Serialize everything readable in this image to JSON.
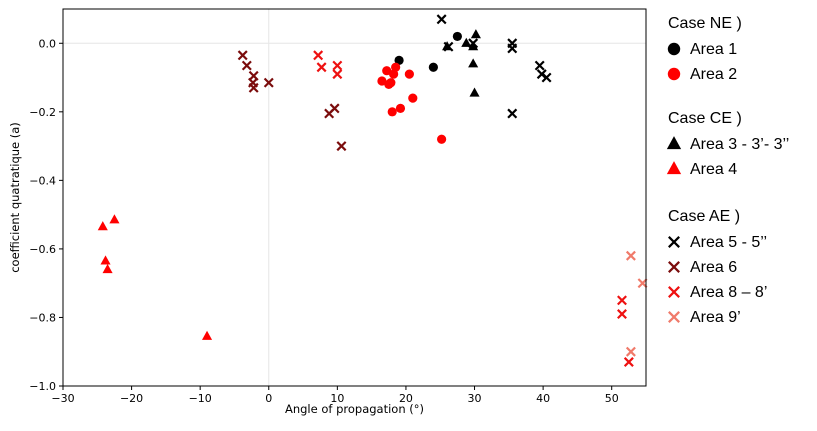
{
  "chart_data": {
    "type": "scatter",
    "xlabel": "Angle of propagation (°)",
    "ylabel": "coefficient quatratique (a)",
    "xlim": [
      -30,
      55
    ],
    "ylim": [
      -1.0,
      0.1
    ],
    "x_ticks": [
      -30,
      -20,
      -10,
      0,
      10,
      20,
      30,
      40,
      50
    ],
    "y_ticks": [
      -1.0,
      -0.8,
      -0.6,
      -0.4,
      -0.2,
      0.0
    ],
    "x_tick_labels": [
      "−30",
      "−20",
      "−10",
      "0",
      "10",
      "20",
      "30",
      "40",
      "50"
    ],
    "y_tick_labels": [
      "−1.0",
      "−0.8",
      "−0.6",
      "−0.4",
      "−0.2",
      "0.0"
    ],
    "grid": "zero lines only",
    "legend_position": "right, outside plot",
    "legend": [
      {
        "title": "Case NE )",
        "entries": [
          {
            "label": "Area 1",
            "marker": "circle",
            "color": "#000000"
          },
          {
            "label": "Area 2",
            "marker": "circle",
            "color": "#ff0000"
          }
        ]
      },
      {
        "title": "Case CE )",
        "entries": [
          {
            "label": "Area 3 - 3’- 3’’",
            "marker": "triangle",
            "color": "#000000"
          },
          {
            "label": "Area 4",
            "marker": "triangle",
            "color": "#ff0000"
          }
        ]
      },
      {
        "title": "Case AE )",
        "entries": [
          {
            "label": "Area 5 - 5’’",
            "marker": "x",
            "color": "#000000"
          },
          {
            "label": "Area 6",
            "marker": "x",
            "color": "#7b0c0c"
          },
          {
            "label": "Area 8 – 8’",
            "marker": "x",
            "color": "#ee1111"
          },
          {
            "label": "Area 9’",
            "marker": "x",
            "color": "#f07a6a"
          }
        ]
      }
    ],
    "series": [
      {
        "marker": "circle",
        "color": "#000000",
        "points": [
          [
            27.5,
            0.02
          ],
          [
            19,
            -0.05
          ],
          [
            24,
            -0.07
          ]
        ]
      },
      {
        "marker": "circle",
        "color": "#ff0000",
        "points": [
          [
            16.5,
            -0.11
          ],
          [
            17.2,
            -0.08
          ],
          [
            17.5,
            -0.12
          ],
          [
            17.8,
            -0.115
          ],
          [
            18.2,
            -0.09
          ],
          [
            18.5,
            -0.07
          ],
          [
            18.0,
            -0.2
          ],
          [
            19.2,
            -0.19
          ],
          [
            20.5,
            -0.09
          ],
          [
            21,
            -0.16
          ],
          [
            25.2,
            -0.28
          ]
        ]
      },
      {
        "marker": "triangle",
        "color": "#000000",
        "points": [
          [
            26,
            -0.01
          ],
          [
            28.8,
            0.0
          ],
          [
            30.2,
            0.025
          ],
          [
            29.8,
            -0.01
          ],
          [
            29.8,
            -0.06
          ],
          [
            30,
            -0.145
          ]
        ]
      },
      {
        "marker": "triangle",
        "color": "#ff0000",
        "points": [
          [
            -24.2,
            -0.535
          ],
          [
            -22.5,
            -0.515
          ],
          [
            -23.8,
            -0.635
          ],
          [
            -23.5,
            -0.66
          ],
          [
            -9,
            -0.855
          ]
        ]
      },
      {
        "marker": "x",
        "color": "#000000",
        "points": [
          [
            25.2,
            0.07
          ],
          [
            26.2,
            -0.01
          ],
          [
            29.8,
            0.0
          ],
          [
            35.5,
            0.0
          ],
          [
            35.5,
            -0.015
          ],
          [
            35.5,
            -0.205
          ],
          [
            39.5,
            -0.065
          ],
          [
            39.8,
            -0.09
          ],
          [
            40.5,
            -0.1
          ]
        ]
      },
      {
        "marker": "x",
        "color": "#7b0c0c",
        "points": [
          [
            -3.8,
            -0.035
          ],
          [
            -3.2,
            -0.065
          ],
          [
            -2.2,
            -0.095
          ],
          [
            -2.3,
            -0.115
          ],
          [
            -2.2,
            -0.13
          ],
          [
            0,
            -0.115
          ],
          [
            8.8,
            -0.205
          ],
          [
            9.6,
            -0.19
          ],
          [
            10.6,
            -0.3
          ]
        ]
      },
      {
        "marker": "x",
        "color": "#ee1111",
        "points": [
          [
            7.2,
            -0.035
          ],
          [
            7.7,
            -0.07
          ],
          [
            10.0,
            -0.065
          ],
          [
            10.0,
            -0.09
          ],
          [
            51.5,
            -0.75
          ],
          [
            51.5,
            -0.79
          ],
          [
            52.5,
            -0.93
          ]
        ]
      },
      {
        "marker": "x",
        "color": "#f07a6a",
        "points": [
          [
            52.8,
            -0.62
          ],
          [
            54.5,
            -0.7
          ],
          [
            52.8,
            -0.9
          ]
        ]
      }
    ]
  }
}
